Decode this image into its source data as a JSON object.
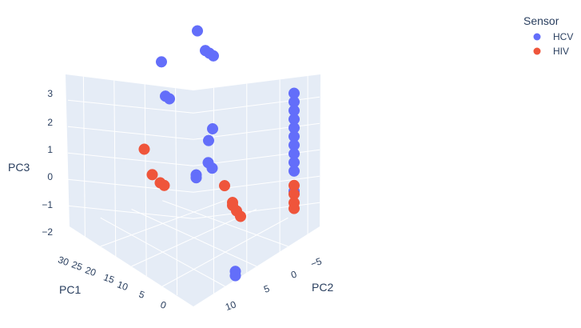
{
  "chart_data": {
    "type": "scatter",
    "title": "",
    "legend": {
      "title": "Sensor",
      "placement": "top-right",
      "entries": [
        {
          "name": "HCV",
          "color": "#636efa"
        },
        {
          "name": "HIV",
          "color": "#ef553b"
        }
      ]
    },
    "axes": {
      "x": {
        "label": "PC1",
        "ticks": [
          "30",
          "25",
          "20",
          "15",
          "10",
          "5",
          "0"
        ]
      },
      "y": {
        "label": "PC2",
        "ticks": [
          "−5",
          "0",
          "5",
          "10"
        ]
      },
      "z": {
        "label": "PC3",
        "ticks": [
          "3",
          "2",
          "1",
          "0",
          "−1",
          "−2"
        ],
        "range": [
          -2.9,
          3.6
        ]
      }
    },
    "grid": true,
    "series": [
      {
        "name": "HCV",
        "color": "#636efa",
        "points": [
          {
            "x": 20,
            "y": 0,
            "z": 3.0
          },
          {
            "x": 18,
            "y": 0,
            "z": 2.5
          },
          {
            "x": 17,
            "y": 0,
            "z": 2.5
          },
          {
            "x": 16,
            "y": 0,
            "z": 2.5
          },
          {
            "x": 29,
            "y": 0,
            "z": 1.1
          },
          {
            "x": 28,
            "y": 0,
            "z": 0.0
          },
          {
            "x": 27,
            "y": 0,
            "z": 0.0
          },
          {
            "x": 12,
            "y": 2,
            "z": 0.7
          },
          {
            "x": 13,
            "y": 2,
            "z": 0.2
          },
          {
            "x": 11,
            "y": 3,
            "z": -0.2
          },
          {
            "x": 10,
            "y": 3,
            "z": -0.3
          },
          {
            "x": 14,
            "y": 3,
            "z": -0.9
          },
          {
            "x": 14,
            "y": 3,
            "z": -1.0
          },
          {
            "x": 0,
            "y": -2,
            "z": 2.3
          },
          {
            "x": 0,
            "y": -2,
            "z": 2.0
          },
          {
            "x": 0,
            "y": -2,
            "z": 1.7
          },
          {
            "x": 0,
            "y": -2,
            "z": 1.4
          },
          {
            "x": 0,
            "y": -2,
            "z": 1.1
          },
          {
            "x": 0,
            "y": -2,
            "z": 0.8
          },
          {
            "x": 0,
            "y": -2,
            "z": 0.5
          },
          {
            "x": 0,
            "y": -2,
            "z": 0.2
          },
          {
            "x": 0,
            "y": -2,
            "z": -0.1
          },
          {
            "x": 0,
            "y": -2,
            "z": -0.4
          },
          {
            "x": 0,
            "y": -2,
            "z": -1.1
          },
          {
            "x": 0,
            "y": 5,
            "z": -2.6
          },
          {
            "x": 0,
            "y": 5,
            "z": -2.75
          }
        ]
      },
      {
        "name": "HIV",
        "color": "#ef553b",
        "points": [
          {
            "x": 27,
            "y": 3,
            "z": -1.2
          },
          {
            "x": 25,
            "y": 3,
            "z": -1.9
          },
          {
            "x": 23,
            "y": 3,
            "z": -2.0
          },
          {
            "x": 22,
            "y": 3,
            "z": -2.0
          },
          {
            "x": 9,
            "y": 2,
            "z": -1.0
          },
          {
            "x": 7,
            "y": 2,
            "z": -1.4
          },
          {
            "x": 7,
            "y": 2,
            "z": -1.5
          },
          {
            "x": 6,
            "y": 2,
            "z": -1.6
          },
          {
            "x": 5,
            "y": 2,
            "z": -1.7
          },
          {
            "x": 0,
            "y": -2,
            "z": -0.9
          },
          {
            "x": 0,
            "y": -2,
            "z": -1.2
          },
          {
            "x": 0,
            "y": -2,
            "z": -1.5
          },
          {
            "x": 0,
            "y": -2,
            "z": -1.7
          }
        ]
      }
    ]
  }
}
